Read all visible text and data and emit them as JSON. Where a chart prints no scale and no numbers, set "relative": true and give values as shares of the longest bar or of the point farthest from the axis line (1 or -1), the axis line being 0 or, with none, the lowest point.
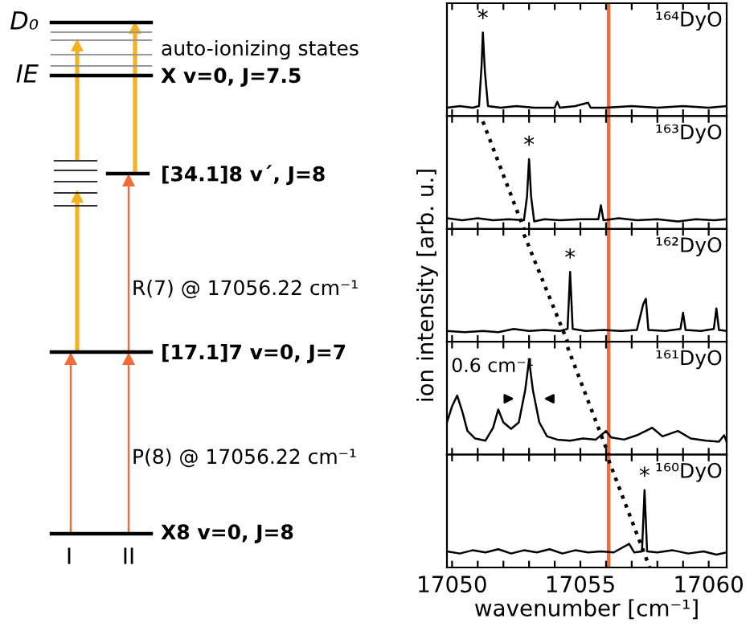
{
  "chart_data": [
    {
      "type": "other",
      "annotations": [
        "D₀",
        "IE",
        "auto-ionizing states",
        "X v=0, J=7.5",
        "[34.1]8 v´, J=8",
        "R(7) @ 17056.22 cm⁻¹",
        "[17.1]7 v=0, J=7",
        "P(8) @ 17056.22 cm⁻¹",
        "X8 v=0, J=8",
        "I",
        "II"
      ]
    },
    {
      "type": "line",
      "relative": true,
      "title": "¹⁶⁴DyO",
      "xlim": [
        17049.8,
        17060.7
      ],
      "tick_labels": false,
      "xticks": [
        17050,
        {
          "value": 17051,
          "label": null
        },
        {
          "value": 17052,
          "label": null
        },
        {
          "value": 17053,
          "label": null
        },
        {
          "value": 17054,
          "label": null
        },
        17055,
        {
          "value": 17056,
          "label": null
        },
        {
          "value": 17057,
          "label": null
        },
        {
          "value": 17058,
          "label": null
        },
        {
          "value": 17059,
          "label": null
        },
        17060
      ],
      "ref_lines": [
        {
          "axis": "x",
          "value": 17056.1,
          "color": "#f26b3a"
        }
      ],
      "annotations": [
        {
          "text": "*",
          "x": 17051.2,
          "y": 1
        }
      ],
      "series": [
        {
          "color": "#000000",
          "line_style": "solid",
          "x": [
            17049.8,
            17050.3,
            17050.8,
            17051.05,
            17051.15,
            17051.2,
            17051.28,
            17051.4,
            17051.9,
            17052.5,
            17053.2,
            17054.0,
            17054.1,
            17054.2,
            17054.8,
            17055.3,
            17055.4,
            17056.0,
            17057,
            17058,
            17059,
            17060,
            17060.7
          ],
          "values": [
            0.1,
            0.12,
            0.1,
            0.12,
            0.6,
            1,
            0.53,
            0.12,
            0.1,
            0.12,
            0.1,
            0.1,
            0.17,
            0.1,
            0.12,
            0.16,
            0.1,
            0.1,
            0.12,
            0.1,
            0.12,
            0.1,
            0.12
          ]
        }
      ]
    },
    {
      "type": "line",
      "relative": true,
      "title": "¹⁶³DyO",
      "xlim": [
        17049.8,
        17060.7
      ],
      "tick_labels": false,
      "xticks": [
        17050,
        {
          "value": 17051,
          "label": null
        },
        {
          "value": 17052,
          "label": null
        },
        {
          "value": 17053,
          "label": null
        },
        {
          "value": 17054,
          "label": null
        },
        17055,
        {
          "value": 17056,
          "label": null
        },
        {
          "value": 17057,
          "label": null
        },
        {
          "value": 17058,
          "label": null
        },
        {
          "value": 17059,
          "label": null
        },
        17060
      ],
      "ref_lines": [
        {
          "axis": "x",
          "value": 17056.1,
          "color": "#f26b3a"
        }
      ],
      "annotations": [
        {
          "text": "*",
          "x": 17053.0,
          "y": 0.65
        }
      ],
      "series": [
        {
          "color": "#000000",
          "line_style": "solid",
          "x": [
            17049.8,
            17050.4,
            17051,
            17051.6,
            17052.2,
            17052.8,
            17052.92,
            17053.0,
            17053.08,
            17053.2,
            17053.6,
            17054.2,
            17055.0,
            17055.7,
            17055.8,
            17055.9,
            17056.5,
            17057.2,
            17058,
            17058.8,
            17059.5,
            17060.2,
            17060.7
          ],
          "values": [
            0.1,
            0.08,
            0.1,
            0.08,
            0.09,
            0.08,
            0.3,
            0.65,
            0.3,
            0.07,
            0.09,
            0.08,
            0.09,
            0.09,
            0.22,
            0.08,
            0.1,
            0.08,
            0.09,
            0.07,
            0.09,
            0.08,
            0.09
          ]
        },
        {
          "color": "#000000",
          "line_style": "dotted",
          "x": [
            17051.2,
            17052.8
          ],
          "values": [
            1,
            0
          ]
        }
      ]
    },
    {
      "type": "line",
      "relative": true,
      "title": "¹⁶²DyO",
      "ylabel": "ion intensity [arb. u.]",
      "xlim": [
        17049.8,
        17060.7
      ],
      "tick_labels": false,
      "xticks": [
        17050,
        {
          "value": 17051,
          "label": null
        },
        {
          "value": 17052,
          "label": null
        },
        {
          "value": 17053,
          "label": null
        },
        {
          "value": 17054,
          "label": null
        },
        17055,
        {
          "value": 17056,
          "label": null
        },
        {
          "value": 17057,
          "label": null
        },
        {
          "value": 17058,
          "label": null
        },
        {
          "value": 17059,
          "label": null
        },
        17060
      ],
      "ref_lines": [
        {
          "axis": "x",
          "value": 17056.1,
          "color": "#f26b3a"
        }
      ],
      "annotations": [
        {
          "text": "*",
          "x": 17054.6,
          "y": 0.65
        }
      ],
      "series": [
        {
          "color": "#000000",
          "line_style": "solid",
          "x": [
            17049.8,
            17050.5,
            17051.2,
            17051.8,
            17052.4,
            17053.0,
            17053.6,
            17054.2,
            17054.5,
            17054.6,
            17054.7,
            17055.2,
            17055.9,
            17056.6,
            17057.2,
            17057.45,
            17057.55,
            17057.65,
            17058.3,
            17058.9,
            17059.0,
            17059.1,
            17059.7,
            17060.2,
            17060.3,
            17060.4,
            17060.7
          ],
          "values": [
            0.1,
            0.09,
            0.1,
            0.09,
            0.12,
            0.1,
            0.11,
            0.1,
            0.12,
            0.65,
            0.12,
            0.1,
            0.11,
            0.1,
            0.11,
            0.35,
            0.4,
            0.11,
            0.1,
            0.12,
            0.27,
            0.11,
            0.1,
            0.12,
            0.31,
            0.11,
            0.1
          ]
        },
        {
          "color": "#000000",
          "line_style": "dotted",
          "x": [
            17052.8,
            17054.5
          ],
          "values": [
            1,
            0
          ]
        }
      ]
    },
    {
      "type": "line",
      "relative": true,
      "title": "¹⁶¹DyO",
      "xlim": [
        17049.8,
        17060.7
      ],
      "tick_labels": false,
      "xticks": [
        17050,
        {
          "value": 17051,
          "label": null
        },
        {
          "value": 17052,
          "label": null
        },
        {
          "value": 17053,
          "label": null
        },
        {
          "value": 17054,
          "label": null
        },
        17055,
        {
          "value": 17056,
          "label": null
        },
        {
          "value": 17057,
          "label": null
        },
        {
          "value": 17058,
          "label": null
        },
        {
          "value": 17059,
          "label": null
        },
        17060
      ],
      "ref_lines": [
        {
          "axis": "x",
          "value": 17056.1,
          "color": "#f26b3a"
        }
      ],
      "annotations": [
        "0.6 cm⁻¹"
      ],
      "series": [
        {
          "color": "#000000",
          "line_style": "solid",
          "x": [
            17049.8,
            17050.0,
            17050.2,
            17050.4,
            17050.6,
            17050.9,
            17051.3,
            17051.6,
            17051.8,
            17052.0,
            17052.3,
            17052.6,
            17052.85,
            17053.0,
            17053.15,
            17053.4,
            17053.7,
            17054.1,
            17054.6,
            17055.1,
            17055.6,
            17056.0,
            17056.2,
            17056.7,
            17057.2,
            17057.8,
            17058.2,
            17058.8,
            17059.3,
            17059.9,
            17060.4,
            17060.6,
            17060.7
          ],
          "values": [
            0.3,
            0.45,
            0.55,
            0.4,
            0.22,
            0.15,
            0.13,
            0.25,
            0.42,
            0.3,
            0.24,
            0.3,
            0.6,
            0.88,
            0.6,
            0.3,
            0.17,
            0.14,
            0.13,
            0.15,
            0.14,
            0.22,
            0.16,
            0.14,
            0.18,
            0.25,
            0.17,
            0.22,
            0.15,
            0.13,
            0.12,
            0.18,
            0.12
          ]
        },
        {
          "color": "#000000",
          "line_style": "dotted",
          "x": [
            17054.5,
            17056.1
          ],
          "values": [
            1,
            0
          ]
        }
      ]
    },
    {
      "type": "line",
      "relative": true,
      "title": "¹⁶⁰DyO",
      "xlabel": "wavenumber [cm⁻¹]",
      "xlim": [
        17049.8,
        17060.7
      ],
      "tick_labels": "x",
      "xticks": [
        17050,
        {
          "value": 17051,
          "label": null
        },
        {
          "value": 17052,
          "label": null
        },
        {
          "value": 17053,
          "label": null
        },
        {
          "value": 17054,
          "label": null
        },
        17055,
        {
          "value": 17056,
          "label": null
        },
        {
          "value": 17057,
          "label": null
        },
        {
          "value": 17058,
          "label": null
        },
        {
          "value": 17059,
          "label": null
        },
        17060
      ],
      "ref_lines": [
        {
          "axis": "x",
          "value": 17056.1,
          "color": "#f26b3a"
        }
      ],
      "annotations": [
        {
          "text": "*",
          "x": 17057.5,
          "y": 0.72
        }
      ],
      "series": [
        {
          "color": "#000000",
          "line_style": "solid",
          "x": [
            17049.8,
            17050.3,
            17050.8,
            17051.3,
            17051.8,
            17052.3,
            17052.8,
            17053.3,
            17053.8,
            17054.3,
            17054.8,
            17055.3,
            17055.8,
            17056.3,
            17056.9,
            17057.1,
            17057.4,
            17057.5,
            17057.6,
            17058.0,
            17058.6,
            17059.2,
            17059.8,
            17060.3,
            17060.7
          ],
          "values": [
            0.15,
            0.13,
            0.16,
            0.14,
            0.17,
            0.13,
            0.16,
            0.14,
            0.17,
            0.13,
            0.16,
            0.14,
            0.15,
            0.14,
            0.22,
            0.14,
            0.15,
            0.72,
            0.15,
            0.14,
            0.16,
            0.13,
            0.15,
            0.12,
            0.14
          ]
        },
        {
          "color": "#000000",
          "line_style": "dotted",
          "x": [
            17056.1,
            17057.7
          ],
          "values": [
            1,
            0
          ]
        }
      ]
    }
  ]
}
